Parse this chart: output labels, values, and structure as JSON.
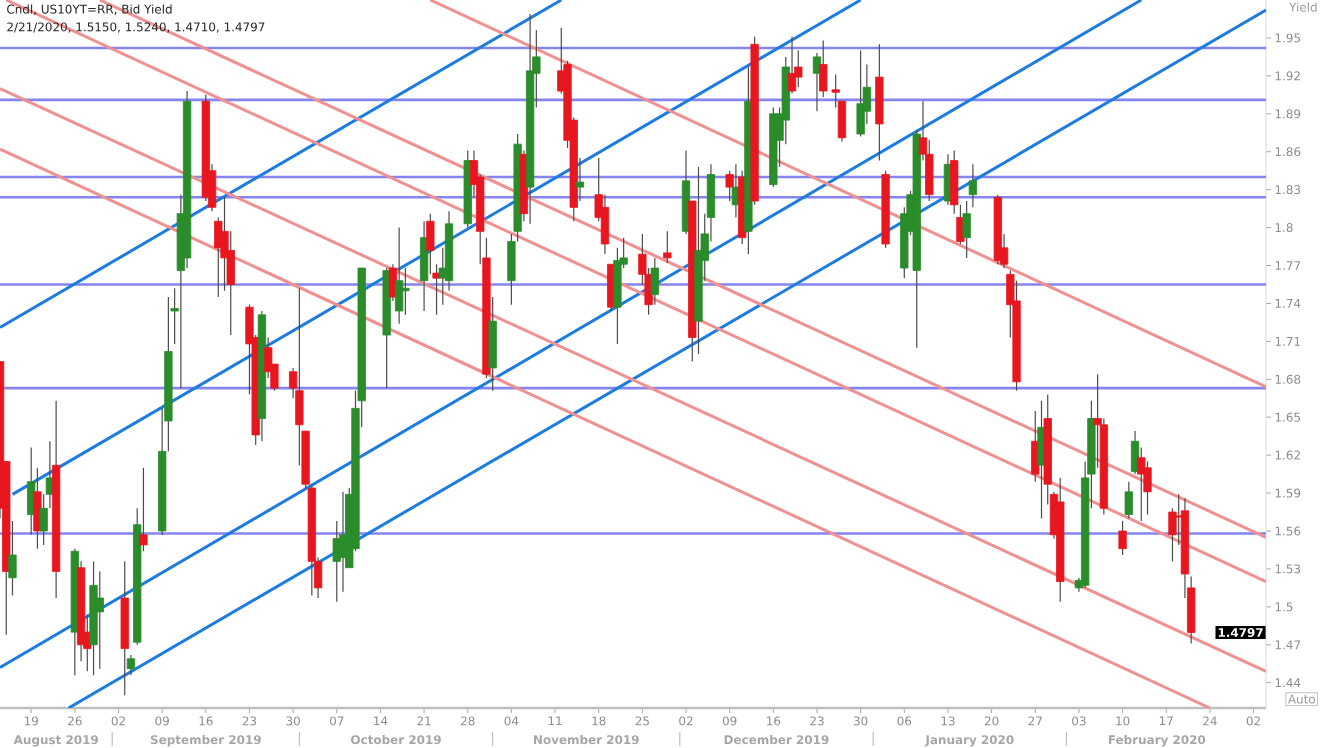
{
  "chart_data": {
    "type": "candlestick",
    "title": "Cndl, US10YT=RR, Bid Yield",
    "subtitle": "2/21/2020, 1.5150, 1.5240, 1.4710, 1.4797",
    "ylabel": "Yield",
    "xlim": [
      "2019-08-14",
      "2020-03-04"
    ],
    "ylim": [
      1.42,
      1.98
    ],
    "xticks": [
      {
        "value": "2019-08-19",
        "label": "19"
      },
      {
        "value": "2019-08-26",
        "label": "26"
      },
      {
        "value": "2019-09-02",
        "label": "02"
      },
      {
        "value": "2019-09-09",
        "label": "09"
      },
      {
        "value": "2019-09-16",
        "label": "16"
      },
      {
        "value": "2019-09-23",
        "label": "23"
      },
      {
        "value": "2019-09-30",
        "label": "30"
      },
      {
        "value": "2019-10-07",
        "label": "07"
      },
      {
        "value": "2019-10-14",
        "label": "14"
      },
      {
        "value": "2019-10-21",
        "label": "21"
      },
      {
        "value": "2019-10-28",
        "label": "28"
      },
      {
        "value": "2019-11-04",
        "label": "04"
      },
      {
        "value": "2019-11-11",
        "label": "11"
      },
      {
        "value": "2019-11-18",
        "label": "18"
      },
      {
        "value": "2019-11-25",
        "label": "25"
      },
      {
        "value": "2019-12-02",
        "label": "02"
      },
      {
        "value": "2019-12-09",
        "label": "09"
      },
      {
        "value": "2019-12-16",
        "label": "16"
      },
      {
        "value": "2019-12-23",
        "label": "23"
      },
      {
        "value": "2019-12-30",
        "label": "30"
      },
      {
        "value": "2020-01-06",
        "label": "06"
      },
      {
        "value": "2020-01-13",
        "label": "13"
      },
      {
        "value": "2020-01-20",
        "label": "20"
      },
      {
        "value": "2020-01-27",
        "label": "27"
      },
      {
        "value": "2020-02-03",
        "label": "03"
      },
      {
        "value": "2020-02-10",
        "label": "10"
      },
      {
        "value": "2020-02-17",
        "label": "17"
      },
      {
        "value": "2020-02-24",
        "label": "24"
      },
      {
        "value": "2020-03-02",
        "label": "02"
      }
    ],
    "yticks": [
      1.44,
      1.47,
      1.5,
      1.53,
      1.56,
      1.59,
      1.62,
      1.65,
      1.68,
      1.71,
      1.74,
      1.77,
      1.8,
      1.83,
      1.86,
      1.89,
      1.92,
      1.95
    ],
    "series": [
      {
        "colors": [
          "#e8171f",
          "#e8171f",
          "#2a8c2a",
          "#2a8c2a",
          "#e8171f",
          "#2a8c2a",
          "#2a8c2a",
          "#e8171f",
          "#2a8c2a",
          "#e8171f",
          "#e8171f",
          "#2a8c2a",
          "#2a8c2a",
          "#e8171f",
          "#2a8c2a",
          "#2a8c2a",
          "#e8171f",
          "#2a8c2a",
          "#2a8c2a",
          "#2a8c2a",
          "#2a8c2a",
          "#2a8c2a",
          "#e8171f",
          "#e8171f",
          "#e8171f",
          "#e8171f",
          "#e8171f",
          "#e8171f",
          "#e8171f",
          "#2a8c2a",
          "#e8171f",
          "#e8171f",
          "#e8171f",
          "#e8171f",
          "#e8171f",
          "#e8171f",
          "#e8171f",
          "#2a8c2a",
          "#2a8c2a",
          "#2a8c2a",
          "#2a8c2a",
          "#2a8c2a",
          "#2a8c2a",
          "#e8171f",
          "#2a8c2a",
          "#2a8c2a",
          "#2a8c2a",
          "#e8171f",
          "#e8171f",
          "#2a8c2a",
          "#2a8c2a",
          "#2a8c2a",
          "#e8171f",
          "#e8171f",
          "#e8171f",
          "#2a8c2a",
          "#2a8c2a",
          "#2a8c2a",
          "#e8171f",
          "#2a8c2a",
          "#2a8c2a",
          "#e8171f",
          "#e8171f",
          "#e8171f",
          "#2a8c2a",
          "#e8171f",
          "#e8171f",
          "#e8171f",
          "#2a8c2a",
          "#2a8c2a",
          "#e8171f",
          "#e8171f",
          "#2a8c2a",
          "#e8171f",
          "#2a8c2a",
          "#e8171f",
          "#2a8c2a",
          "#2a8c2a",
          "#2a8c2a",
          "#e8171f",
          "#2a8c2a",
          "#e8171f",
          "#2a8c2a",
          "#e8171f",
          "#2a8c2a",
          "#2a8c2a",
          "#2a8c2a",
          "#e8171f",
          "#e8171f",
          "#2a8c2a",
          "#e8171f",
          "#e8171f",
          "#e8171f",
          "#2a8c2a",
          "#2a8c2a",
          "#e8171f",
          "#e8171f",
          "#2a8c2a",
          "#2a8c2a",
          "#2a8c2a",
          "#e8171f",
          "#e8171f",
          "#2a8c2a",
          "#e8171f",
          "#e8171f",
          "#2a8c2a",
          "#2a8c2a",
          "#e8171f",
          "#e8171f",
          "#e8171f",
          "#e8171f",
          "#e8171f",
          "#2a8c2a",
          "#e8171f",
          "#e8171f",
          "#e8171f",
          "#2a8c2a",
          "#2a8c2a",
          "#2a8c2a",
          "#e8171f",
          "#e8171f",
          "#e8171f",
          "#2a8c2a",
          "#2a8c2a",
          "#e8171f",
          "#e8171f",
          "#e8171f",
          "#e8171f",
          "#e8171f",
          "#e8171f"
        ],
        "x": [
          "2019-08-14",
          "2019-08-15",
          "2019-08-16",
          "2019-08-19",
          "2019-08-20",
          "2019-08-21",
          "2019-08-22",
          "2019-08-23",
          "2019-08-26",
          "2019-08-27",
          "2019-08-28",
          "2019-08-29",
          "2019-08-30",
          "2019-09-03",
          "2019-09-04",
          "2019-09-05",
          "2019-09-06",
          "2019-09-09",
          "2019-09-10",
          "2019-09-11",
          "2019-09-12",
          "2019-09-13",
          "2019-09-16",
          "2019-09-17",
          "2019-09-18",
          "2019-09-19",
          "2019-09-20",
          "2019-09-23",
          "2019-09-24",
          "2019-09-25",
          "2019-09-26",
          "2019-09-27",
          "2019-09-30",
          "2019-10-01",
          "2019-10-02",
          "2019-10-03",
          "2019-10-04",
          "2019-10-07",
          "2019-10-08",
          "2019-10-09",
          "2019-10-10",
          "2019-10-11",
          "2019-10-15",
          "2019-10-16",
          "2019-10-17",
          "2019-10-18",
          "2019-10-21",
          "2019-10-22",
          "2019-10-23",
          "2019-10-24",
          "2019-10-25",
          "2019-10-28",
          "2019-10-29",
          "2019-10-30",
          "2019-10-31",
          "2019-11-01",
          "2019-11-04",
          "2019-11-05",
          "2019-11-06",
          "2019-11-07",
          "2019-11-08",
          "2019-11-12",
          "2019-11-13",
          "2019-11-14",
          "2019-11-15",
          "2019-11-18",
          "2019-11-19",
          "2019-11-20",
          "2019-11-21",
          "2019-11-22",
          "2019-11-25",
          "2019-11-26",
          "2019-11-27",
          "2019-11-29",
          "2019-12-02",
          "2019-12-03",
          "2019-12-04",
          "2019-12-05",
          "2019-12-06",
          "2019-12-09",
          "2019-12-10",
          "2019-12-11",
          "2019-12-12",
          "2019-12-13",
          "2019-12-16",
          "2019-12-17",
          "2019-12-18",
          "2019-12-19",
          "2019-12-20",
          "2019-12-23",
          "2019-12-24",
          "2019-12-26",
          "2019-12-27",
          "2019-12-30",
          "2019-12-31",
          "2020-01-02",
          "2020-01-03",
          "2020-01-06",
          "2020-01-07",
          "2020-01-08",
          "2020-01-09",
          "2020-01-10",
          "2020-01-13",
          "2020-01-14",
          "2020-01-15",
          "2020-01-16",
          "2020-01-17",
          "2020-01-21",
          "2020-01-22",
          "2020-01-23",
          "2020-01-24",
          "2020-01-27",
          "2020-01-28",
          "2020-01-29",
          "2020-01-30",
          "2020-01-31",
          "2020-02-03",
          "2020-02-04",
          "2020-02-05",
          "2020-02-06",
          "2020-02-07",
          "2020-02-10",
          "2020-02-11",
          "2020-02-12",
          "2020-02-13",
          "2020-02-14",
          "2020-02-18",
          "2020-02-19",
          "2020-02-20",
          "2020-02-21"
        ],
        "ohlc": [
          [
            1.694,
            1.694,
            1.57,
            1.578
          ],
          [
            1.615,
            1.615,
            1.478,
            1.528
          ],
          [
            1.523,
            1.568,
            1.509,
            1.541
          ],
          [
            1.573,
            1.626,
            1.557,
            1.599
          ],
          [
            1.591,
            1.61,
            1.546,
            1.56
          ],
          [
            1.56,
            1.589,
            1.549,
            1.578
          ],
          [
            1.589,
            1.631,
            1.578,
            1.602
          ],
          [
            1.612,
            1.663,
            1.507,
            1.528
          ],
          [
            1.48,
            1.546,
            1.446,
            1.544
          ],
          [
            1.531,
            1.536,
            1.457,
            1.47
          ],
          [
            1.48,
            1.494,
            1.449,
            1.467
          ],
          [
            1.47,
            1.536,
            1.446,
            1.517
          ],
          [
            1.496,
            1.528,
            1.451,
            1.507
          ],
          [
            1.507,
            1.536,
            1.43,
            1.467
          ],
          [
            1.451,
            1.462,
            1.446,
            1.459
          ],
          [
            1.472,
            1.578,
            1.47,
            1.565
          ],
          [
            1.557,
            1.61,
            1.544,
            1.549
          ],
          [
            1.56,
            1.657,
            1.557,
            1.623
          ],
          [
            1.647,
            1.745,
            1.623,
            1.702
          ],
          [
            1.734,
            1.752,
            1.708,
            1.736
          ],
          [
            1.766,
            1.826,
            1.673,
            1.811
          ],
          [
            1.776,
            1.908,
            1.768,
            1.9
          ],
          [
            1.9,
            1.905,
            1.821,
            1.824
          ],
          [
            1.845,
            1.85,
            1.813,
            1.816
          ],
          [
            1.805,
            1.808,
            1.745,
            1.784
          ],
          [
            1.797,
            1.824,
            1.75,
            1.776
          ],
          [
            1.782,
            1.797,
            1.715,
            1.755
          ],
          [
            1.737,
            1.739,
            1.668,
            1.708
          ],
          [
            1.713,
            1.715,
            1.628,
            1.636
          ],
          [
            1.649,
            1.734,
            1.631,
            1.731
          ],
          [
            1.705,
            1.713,
            1.681,
            1.686
          ],
          [
            1.692,
            1.692,
            1.671,
            1.673
          ],
          [
            1.686,
            1.689,
            1.665,
            1.673
          ],
          [
            1.671,
            1.752,
            1.612,
            1.644
          ],
          [
            1.639,
            1.639,
            1.594,
            1.597
          ],
          [
            1.594,
            1.597,
            1.509,
            1.536
          ],
          [
            1.536,
            1.539,
            1.507,
            1.515
          ],
          [
            1.536,
            1.568,
            1.504,
            1.554
          ],
          [
            1.539,
            1.591,
            1.512,
            1.557
          ],
          [
            1.531,
            1.594,
            1.531,
            1.589
          ],
          [
            1.546,
            1.671,
            1.544,
            1.657
          ],
          [
            1.663,
            1.768,
            1.642,
            1.768
          ],
          [
            1.715,
            1.768,
            1.673,
            1.766
          ],
          [
            1.768,
            1.771,
            1.742,
            1.745
          ],
          [
            1.734,
            1.8,
            1.724,
            1.758
          ],
          [
            1.75,
            1.768,
            1.731,
            1.752
          ],
          [
            1.758,
            1.805,
            1.734,
            1.792
          ],
          [
            1.805,
            1.811,
            1.763,
            1.782
          ],
          [
            1.764,
            1.771,
            1.731,
            1.76
          ],
          [
            1.76,
            1.784,
            1.739,
            1.768
          ],
          [
            1.758,
            1.813,
            1.75,
            1.803
          ],
          [
            1.803,
            1.861,
            1.8,
            1.853
          ],
          [
            1.853,
            1.861,
            1.824,
            1.834
          ],
          [
            1.84,
            1.842,
            1.771,
            1.797
          ],
          [
            1.776,
            1.792,
            1.681,
            1.684
          ],
          [
            1.689,
            1.745,
            1.671,
            1.726
          ],
          [
            1.758,
            1.795,
            1.739,
            1.789
          ],
          [
            1.797,
            1.874,
            1.789,
            1.866
          ],
          [
            1.858,
            1.861,
            1.805,
            1.811
          ],
          [
            1.832,
            1.969,
            1.803,
            1.924
          ],
          [
            1.922,
            1.956,
            1.895,
            1.935
          ],
          [
            1.924,
            1.958,
            1.906,
            1.908
          ],
          [
            1.929,
            1.932,
            1.863,
            1.869
          ],
          [
            1.885,
            1.887,
            1.805,
            1.816
          ],
          [
            1.832,
            1.855,
            1.821,
            1.836
          ],
          [
            1.826,
            1.855,
            1.805,
            1.808
          ],
          [
            1.816,
            1.826,
            1.779,
            1.787
          ],
          [
            1.771,
            1.771,
            1.734,
            1.737
          ],
          [
            1.737,
            1.784,
            1.708,
            1.774
          ],
          [
            1.771,
            1.792,
            1.768,
            1.776
          ],
          [
            1.779,
            1.795,
            1.755,
            1.763
          ],
          [
            1.763,
            1.768,
            1.731,
            1.739
          ],
          [
            1.747,
            1.776,
            1.739,
            1.768
          ],
          [
            1.78,
            1.797,
            1.772,
            1.776
          ],
          [
            1.797,
            1.861,
            1.795,
            1.837
          ],
          [
            1.821,
            1.821,
            1.694,
            1.713
          ],
          [
            1.726,
            1.848,
            1.7,
            1.782
          ],
          [
            1.774,
            1.811,
            1.758,
            1.795
          ],
          [
            1.808,
            1.85,
            1.789,
            1.842
          ],
          [
            1.842,
            1.845,
            1.821,
            1.832
          ],
          [
            1.818,
            1.85,
            1.808,
            1.832
          ],
          [
            1.84,
            1.845,
            1.787,
            1.792
          ],
          [
            1.797,
            1.927,
            1.779,
            1.9
          ],
          [
            1.945,
            1.951,
            1.818,
            1.821
          ],
          [
            1.834,
            1.895,
            1.832,
            1.89
          ],
          [
            1.869,
            1.895,
            1.848,
            1.89
          ],
          [
            1.885,
            1.935,
            1.866,
            1.927
          ],
          [
            1.922,
            1.951,
            1.906,
            1.908
          ],
          [
            1.927,
            1.94,
            1.911,
            1.919
          ],
          [
            1.922,
            1.938,
            1.892,
            1.935
          ],
          [
            1.929,
            1.948,
            1.903,
            1.908
          ],
          [
            1.909,
            1.921,
            1.895,
            1.907
          ],
          [
            1.9,
            1.9,
            1.868,
            1.871
          ],
          [
            1.874,
            1.94,
            1.872,
            1.898
          ],
          [
            1.892,
            1.929,
            1.882,
            1.911
          ],
          [
            1.919,
            1.945,
            1.853,
            1.882
          ],
          [
            1.842,
            1.845,
            1.784,
            1.787
          ],
          [
            1.768,
            1.816,
            1.76,
            1.811
          ],
          [
            1.797,
            1.829,
            1.794,
            1.826
          ],
          [
            1.766,
            1.877,
            1.705,
            1.874
          ],
          [
            1.871,
            1.9,
            1.853,
            1.858
          ],
          [
            1.858,
            1.869,
            1.821,
            1.826
          ],
          [
            1.821,
            1.858,
            1.818,
            1.85
          ],
          [
            1.853,
            1.861,
            1.811,
            1.818
          ],
          [
            1.808,
            1.818,
            1.787,
            1.789
          ],
          [
            1.792,
            1.821,
            1.776,
            1.811
          ],
          [
            1.826,
            1.85,
            1.816,
            1.837
          ],
          [
            1.824,
            1.826,
            1.771,
            1.774
          ],
          [
            1.784,
            1.795,
            1.768,
            1.771
          ],
          [
            1.763,
            1.766,
            1.713,
            1.739
          ],
          [
            1.742,
            1.758,
            1.671,
            1.678
          ],
          [
            1.631,
            1.655,
            1.599,
            1.605
          ],
          [
            1.612,
            1.663,
            1.57,
            1.642
          ],
          [
            1.649,
            1.668,
            1.581,
            1.597
          ],
          [
            1.589,
            1.591,
            1.554,
            1.557
          ],
          [
            1.583,
            1.602,
            1.504,
            1.52
          ],
          [
            1.515,
            1.523,
            1.512,
            1.521
          ],
          [
            1.517,
            1.615,
            1.515,
            1.602
          ],
          [
            1.605,
            1.663,
            1.578,
            1.649
          ],
          [
            1.649,
            1.684,
            1.61,
            1.644
          ],
          [
            1.644,
            1.649,
            1.573,
            1.578
          ],
          [
            1.56,
            1.568,
            1.541,
            1.546
          ],
          [
            1.573,
            1.599,
            1.57,
            1.591
          ],
          [
            1.607,
            1.639,
            1.605,
            1.631
          ],
          [
            1.618,
            1.626,
            1.568,
            1.605
          ],
          [
            1.61,
            1.615,
            1.573,
            1.591
          ],
          [
            1.575,
            1.578,
            1.536,
            1.557
          ],
          [
            1.572,
            1.589,
            1.549,
            1.571
          ],
          [
            1.576,
            1.586,
            1.507,
            1.526
          ],
          [
            1.515,
            1.524,
            1.471,
            1.4797
          ]
        ]
      },
      {
        "type": "line",
        "color": "#1c7ce0",
        "x": [
          "2019-08-14",
          "2019-11-12"
        ],
        "values": [
          1.721,
          1.98
        ]
      },
      {
        "type": "line",
        "color": "#1c7ce0",
        "x": [
          "2019-08-16",
          "2019-12-30"
        ],
        "values": [
          1.589,
          1.98
        ]
      },
      {
        "type": "line",
        "color": "#1c7ce0",
        "x": [
          "2019-08-14",
          "2020-02-13"
        ],
        "values": [
          1.452,
          1.98
        ]
      },
      {
        "type": "line",
        "color": "#1c7ce0",
        "x": [
          "2019-08-25",
          "2020-03-04"
        ],
        "values": [
          1.42,
          1.972
        ]
      },
      {
        "type": "line",
        "color": "#f09090",
        "x": [
          "2019-10-22",
          "2020-03-04"
        ],
        "values": [
          1.98,
          1.674
        ]
      },
      {
        "type": "line",
        "color": "#f09090",
        "x": [
          "2019-08-30",
          "2020-03-04"
        ],
        "values": [
          1.98,
          1.555
        ]
      },
      {
        "type": "line",
        "color": "#f09090",
        "x": [
          "2019-08-15",
          "2020-03-04"
        ],
        "values": [
          1.98,
          1.52
        ]
      },
      {
        "type": "line",
        "color": "#f09090",
        "x": [
          "2019-08-14",
          "2020-03-04"
        ],
        "values": [
          1.91,
          1.449
        ]
      },
      {
        "type": "line",
        "color": "#f09090",
        "x": [
          "2019-08-14",
          "2020-02-24"
        ],
        "values": [
          1.862,
          1.42
        ]
      }
    ],
    "ref_lines": [
      {
        "axis": "y",
        "value": 1.942,
        "color": "#8585f0"
      },
      {
        "axis": "y",
        "value": 1.901,
        "color": "#8585f0"
      },
      {
        "axis": "y",
        "value": 1.84,
        "color": "#8585f0"
      },
      {
        "axis": "y",
        "value": 1.824,
        "color": "#8585f0"
      },
      {
        "axis": "y",
        "value": 1.755,
        "color": "#8585f0"
      },
      {
        "axis": "y",
        "value": 1.673,
        "color": "#8585f0"
      },
      {
        "axis": "y",
        "value": 1.558,
        "color": "#8585f0"
      }
    ],
    "annotations": [
      "1.4797",
      "August 2019",
      "September 2019",
      "October 2019",
      "November 2019",
      "December 2019",
      "January 2020",
      "February 2020",
      "Auto"
    ]
  }
}
